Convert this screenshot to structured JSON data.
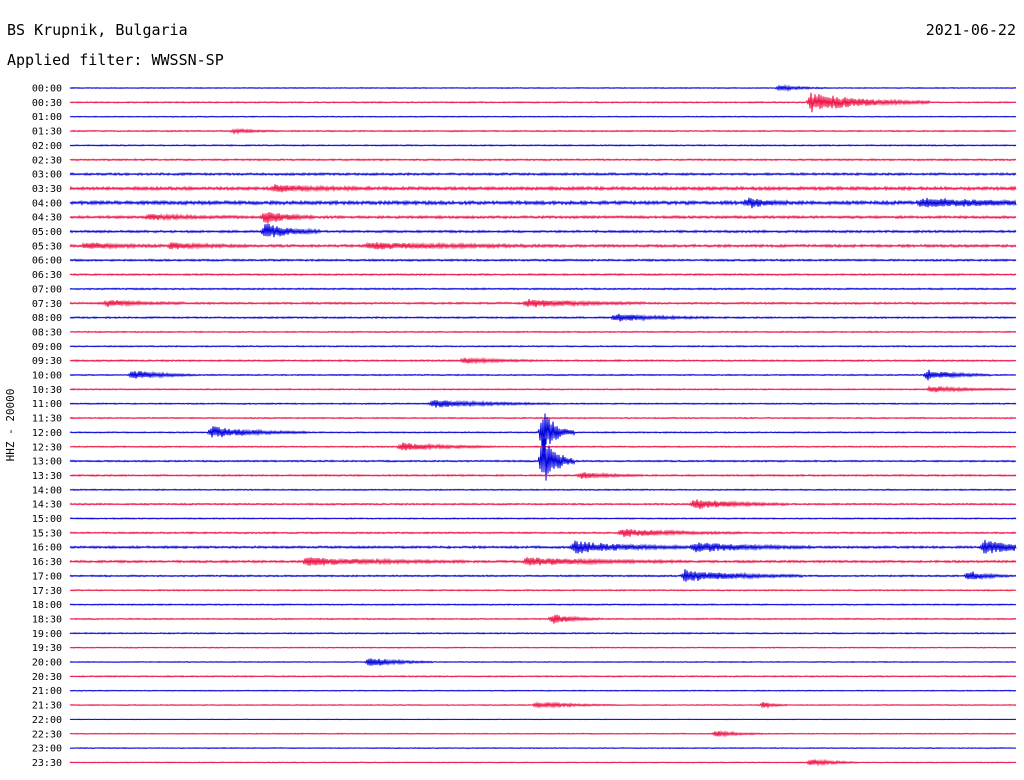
{
  "header": {
    "station": "BS Krupnik, Bulgaria",
    "filter": "Applied filter: WWSSN-SP",
    "date": "2021-06-22"
  },
  "colors": {
    "trace_a": "#0000dd",
    "trace_b": "#ee1144"
  },
  "chart_data": {
    "type": "line",
    "ylabel": "HHZ - 20000",
    "rows": [
      "00:00",
      "00:30",
      "01:00",
      "01:30",
      "02:00",
      "02:30",
      "03:00",
      "03:30",
      "04:00",
      "04:30",
      "05:00",
      "05:30",
      "06:00",
      "06:30",
      "07:00",
      "07:30",
      "08:00",
      "08:30",
      "09:00",
      "09:30",
      "10:00",
      "10:30",
      "11:00",
      "11:30",
      "12:00",
      "12:30",
      "13:00",
      "13:30",
      "14:00",
      "14:30",
      "15:00",
      "15:30",
      "16:00",
      "16:30",
      "17:00",
      "17:30",
      "18:00",
      "18:30",
      "19:00",
      "19:30",
      "20:00",
      "20:30",
      "21:00",
      "21:30",
      "22:00",
      "22:30",
      "23:00",
      "23:30"
    ],
    "x_range_minutes": [
      0,
      30
    ],
    "noise_level": [
      0.3,
      0.4,
      0.3,
      0.4,
      0.4,
      0.5,
      0.7,
      1.0,
      1.1,
      0.8,
      0.7,
      0.8,
      0.6,
      0.5,
      0.5,
      0.6,
      0.5,
      0.4,
      0.4,
      0.5,
      0.4,
      0.4,
      0.4,
      0.4,
      0.4,
      0.4,
      0.5,
      0.5,
      0.4,
      0.5,
      0.4,
      0.5,
      0.7,
      0.7,
      0.5,
      0.4,
      0.4,
      0.4,
      0.4,
      0.3,
      0.3,
      0.4,
      0.3,
      0.3,
      0.2,
      0.3,
      0.3,
      0.3
    ],
    "events": [
      {
        "row": 0,
        "minute": 22.5,
        "amp": 3,
        "duration": 0.6
      },
      {
        "row": 1,
        "minute": 23.5,
        "amp": 10,
        "duration": 1.5
      },
      {
        "row": 3,
        "minute": 5.2,
        "amp": 2,
        "duration": 0.6
      },
      {
        "row": 7,
        "minute": 6.5,
        "amp": 3,
        "duration": 1.2
      },
      {
        "row": 8,
        "minute": 21.5,
        "amp": 5,
        "duration": 0.5
      },
      {
        "row": 8,
        "minute": 27,
        "amp": 4,
        "duration": 2.5
      },
      {
        "row": 9,
        "minute": 2.5,
        "amp": 2.5,
        "duration": 1.2
      },
      {
        "row": 9,
        "minute": 6.2,
        "amp": 7,
        "duration": 0.6
      },
      {
        "row": 10,
        "minute": 6.2,
        "amp": 8,
        "duration": 0.7
      },
      {
        "row": 11,
        "minute": 0.5,
        "amp": 3,
        "duration": 1.0
      },
      {
        "row": 11,
        "minute": 3.2,
        "amp": 3,
        "duration": 1.0
      },
      {
        "row": 11,
        "minute": 9.5,
        "amp": 3,
        "duration": 2.5
      },
      {
        "row": 15,
        "minute": 1.2,
        "amp": 3,
        "duration": 1.0
      },
      {
        "row": 15,
        "minute": 14.5,
        "amp": 4,
        "duration": 1.5
      },
      {
        "row": 16,
        "minute": 17.3,
        "amp": 4,
        "duration": 1.2
      },
      {
        "row": 19,
        "minute": 12.5,
        "amp": 2.5,
        "duration": 1.0
      },
      {
        "row": 20,
        "minute": 2.0,
        "amp": 5,
        "duration": 0.8
      },
      {
        "row": 20,
        "minute": 27.2,
        "amp": 5,
        "duration": 0.8
      },
      {
        "row": 21,
        "minute": 27.3,
        "amp": 3,
        "duration": 1.0
      },
      {
        "row": 22,
        "minute": 11.5,
        "amp": 4,
        "duration": 1.5
      },
      {
        "row": 24,
        "minute": 4.5,
        "amp": 6,
        "duration": 1.2
      },
      {
        "row": 24,
        "minute": 15.0,
        "amp": 24,
        "duration": 0.4
      },
      {
        "row": 25,
        "minute": 10.5,
        "amp": 4,
        "duration": 1.2
      },
      {
        "row": 26,
        "minute": 15.0,
        "amp": 28,
        "duration": 0.4
      },
      {
        "row": 27,
        "minute": 16.2,
        "amp": 3,
        "duration": 0.8
      },
      {
        "row": 29,
        "minute": 19.8,
        "amp": 5,
        "duration": 1.2
      },
      {
        "row": 31,
        "minute": 17.5,
        "amp": 4,
        "duration": 1.5
      },
      {
        "row": 32,
        "minute": 16.0,
        "amp": 6,
        "duration": 1.5
      },
      {
        "row": 32,
        "minute": 19.8,
        "amp": 5,
        "duration": 1.5
      },
      {
        "row": 32,
        "minute": 29.0,
        "amp": 7,
        "duration": 1.0
      },
      {
        "row": 33,
        "minute": 7.5,
        "amp": 4,
        "duration": 2.0
      },
      {
        "row": 33,
        "minute": 14.5,
        "amp": 4,
        "duration": 2.0
      },
      {
        "row": 34,
        "minute": 19.5,
        "amp": 6,
        "duration": 1.5
      },
      {
        "row": 34,
        "minute": 28.5,
        "amp": 5,
        "duration": 0.5
      },
      {
        "row": 37,
        "minute": 15.3,
        "amp": 5,
        "duration": 0.6
      },
      {
        "row": 40,
        "minute": 9.5,
        "amp": 5,
        "duration": 0.8
      },
      {
        "row": 43,
        "minute": 14.8,
        "amp": 3,
        "duration": 1.0
      },
      {
        "row": 43,
        "minute": 22.0,
        "amp": 3,
        "duration": 0.3
      },
      {
        "row": 45,
        "minute": 20.5,
        "amp": 3,
        "duration": 0.6
      },
      {
        "row": 47,
        "minute": 23.5,
        "amp": 4,
        "duration": 0.6
      }
    ]
  }
}
